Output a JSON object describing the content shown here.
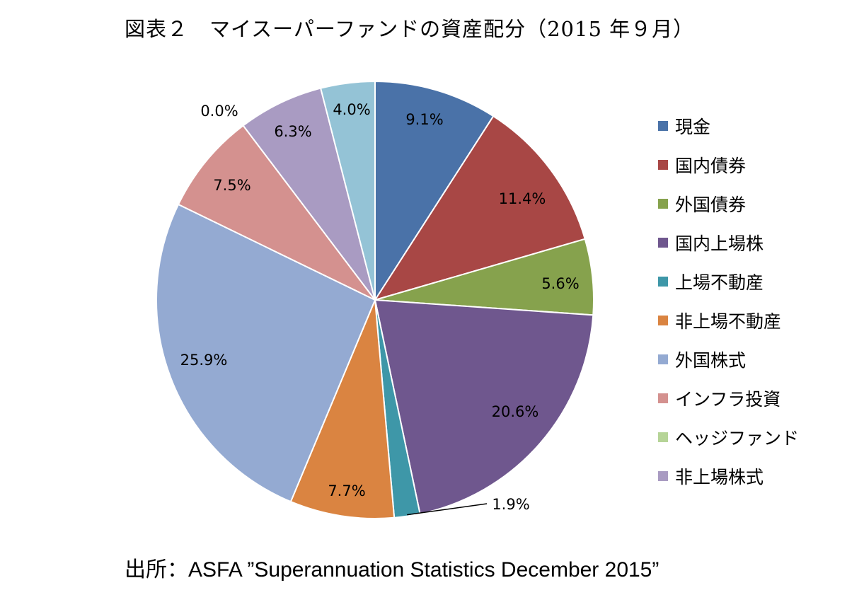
{
  "title": "図表２　マイスーパーファンドの資産配分（2015 年９月）",
  "source": "出所：ASFA ”Superannuation Statistics December 2015”",
  "chart_data": {
    "type": "pie",
    "title": "図表２　マイスーパーファンドの資産配分（2015 年９月）",
    "legend_position": "right",
    "slices": [
      {
        "name": "現金",
        "value": 9.1,
        "label": "9.1%",
        "color": "#4A72A8"
      },
      {
        "name": "国内債券",
        "value": 11.4,
        "label": "11.4%",
        "color": "#A84745"
      },
      {
        "name": "外国債券",
        "value": 5.6,
        "label": "5.6%",
        "color": "#86A24D"
      },
      {
        "name": "国内上場株",
        "value": 20.6,
        "label": "20.6%",
        "color": "#6F578E"
      },
      {
        "name": "上場不動産",
        "value": 1.9,
        "label": "1.9%",
        "color": "#3E97A8"
      },
      {
        "name": "非上場不動産",
        "value": 7.7,
        "label": "7.7%",
        "color": "#DA8441"
      },
      {
        "name": "外国株式",
        "value": 25.9,
        "label": "25.9%",
        "color": "#94AAD2"
      },
      {
        "name": "インフラ投資",
        "value": 7.5,
        "label": "7.5%",
        "color": "#D4918F"
      },
      {
        "name": "ヘッジファンド",
        "value": 0.0,
        "label": "0.0%",
        "color": "#B6D497"
      },
      {
        "name": "非上場株式",
        "value": 6.3,
        "label": "6.3%",
        "color": "#A99BC2"
      },
      {
        "name": "",
        "value": 4.0,
        "label": "4.0%",
        "color": "#94C3D6"
      }
    ]
  }
}
